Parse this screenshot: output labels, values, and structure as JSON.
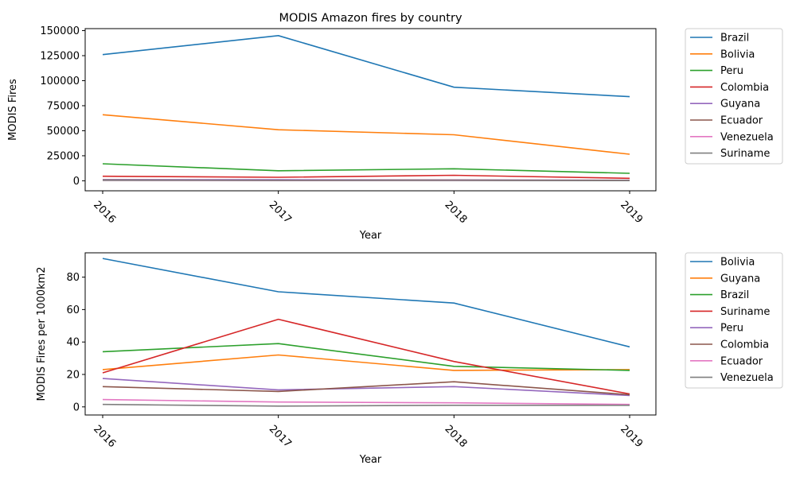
{
  "chart_data": [
    {
      "type": "line",
      "title": "MODIS Amazon fires by country",
      "xlabel": "Year",
      "ylabel": "MODIS Fires",
      "x": [
        "2016",
        "2017",
        "2018",
        "2019"
      ],
      "ylim": [
        -10000,
        152000
      ],
      "yticks": [
        "0",
        "25000",
        "50000",
        "75000",
        "100000",
        "125000",
        "150000"
      ],
      "legend_position": "outside-right-top",
      "series": [
        {
          "name": "Brazil",
          "color": "#1f77b4",
          "values": [
            126000,
            145000,
            93500,
            84000
          ]
        },
        {
          "name": "Bolivia",
          "color": "#ff7f0e",
          "values": [
            66000,
            51000,
            46000,
            26500
          ]
        },
        {
          "name": "Peru",
          "color": "#2ca02c",
          "values": [
            17000,
            10000,
            12000,
            7500
          ]
        },
        {
          "name": "Colombia",
          "color": "#d62728",
          "values": [
            4500,
            3500,
            5500,
            2500
          ]
        },
        {
          "name": "Guyana",
          "color": "#9467bd",
          "values": [
            1200,
            1000,
            900,
            600
          ]
        },
        {
          "name": "Ecuador",
          "color": "#8c564b",
          "values": [
            800,
            500,
            700,
            400
          ]
        },
        {
          "name": "Venezuela",
          "color": "#e377c2",
          "values": [
            300,
            200,
            250,
            150
          ]
        },
        {
          "name": "Suriname",
          "color": "#7f7f7f",
          "values": [
            500,
            400,
            300,
            200
          ]
        }
      ]
    },
    {
      "type": "line",
      "title": "",
      "xlabel": "Year",
      "ylabel": "MODIS Fires per 1000km2",
      "x": [
        "2016",
        "2017",
        "2018",
        "2019"
      ],
      "ylim": [
        -5,
        95
      ],
      "yticks": [
        "0",
        "20",
        "40",
        "60",
        "80"
      ],
      "legend_position": "outside-right-top",
      "series": [
        {
          "name": "Bolivia",
          "color": "#1f77b4",
          "values": [
            91.5,
            71,
            64,
            37
          ]
        },
        {
          "name": "Guyana",
          "color": "#ff7f0e",
          "values": [
            23,
            32,
            22.5,
            23
          ]
        },
        {
          "name": "Brazil",
          "color": "#2ca02c",
          "values": [
            34,
            39,
            25,
            22.5
          ]
        },
        {
          "name": "Suriname",
          "color": "#d62728",
          "values": [
            21,
            54,
            28,
            8
          ]
        },
        {
          "name": "Peru",
          "color": "#9467bd",
          "values": [
            17.5,
            10.5,
            12.5,
            7
          ]
        },
        {
          "name": "Colombia",
          "color": "#8c564b",
          "values": [
            12.5,
            9.5,
            15.5,
            7.5
          ]
        },
        {
          "name": "Ecuador",
          "color": "#e377c2",
          "values": [
            4.5,
            3,
            2.5,
            1.5
          ]
        },
        {
          "name": "Venezuela",
          "color": "#7f7f7f",
          "values": [
            1.5,
            0.5,
            1,
            1
          ]
        }
      ]
    }
  ]
}
